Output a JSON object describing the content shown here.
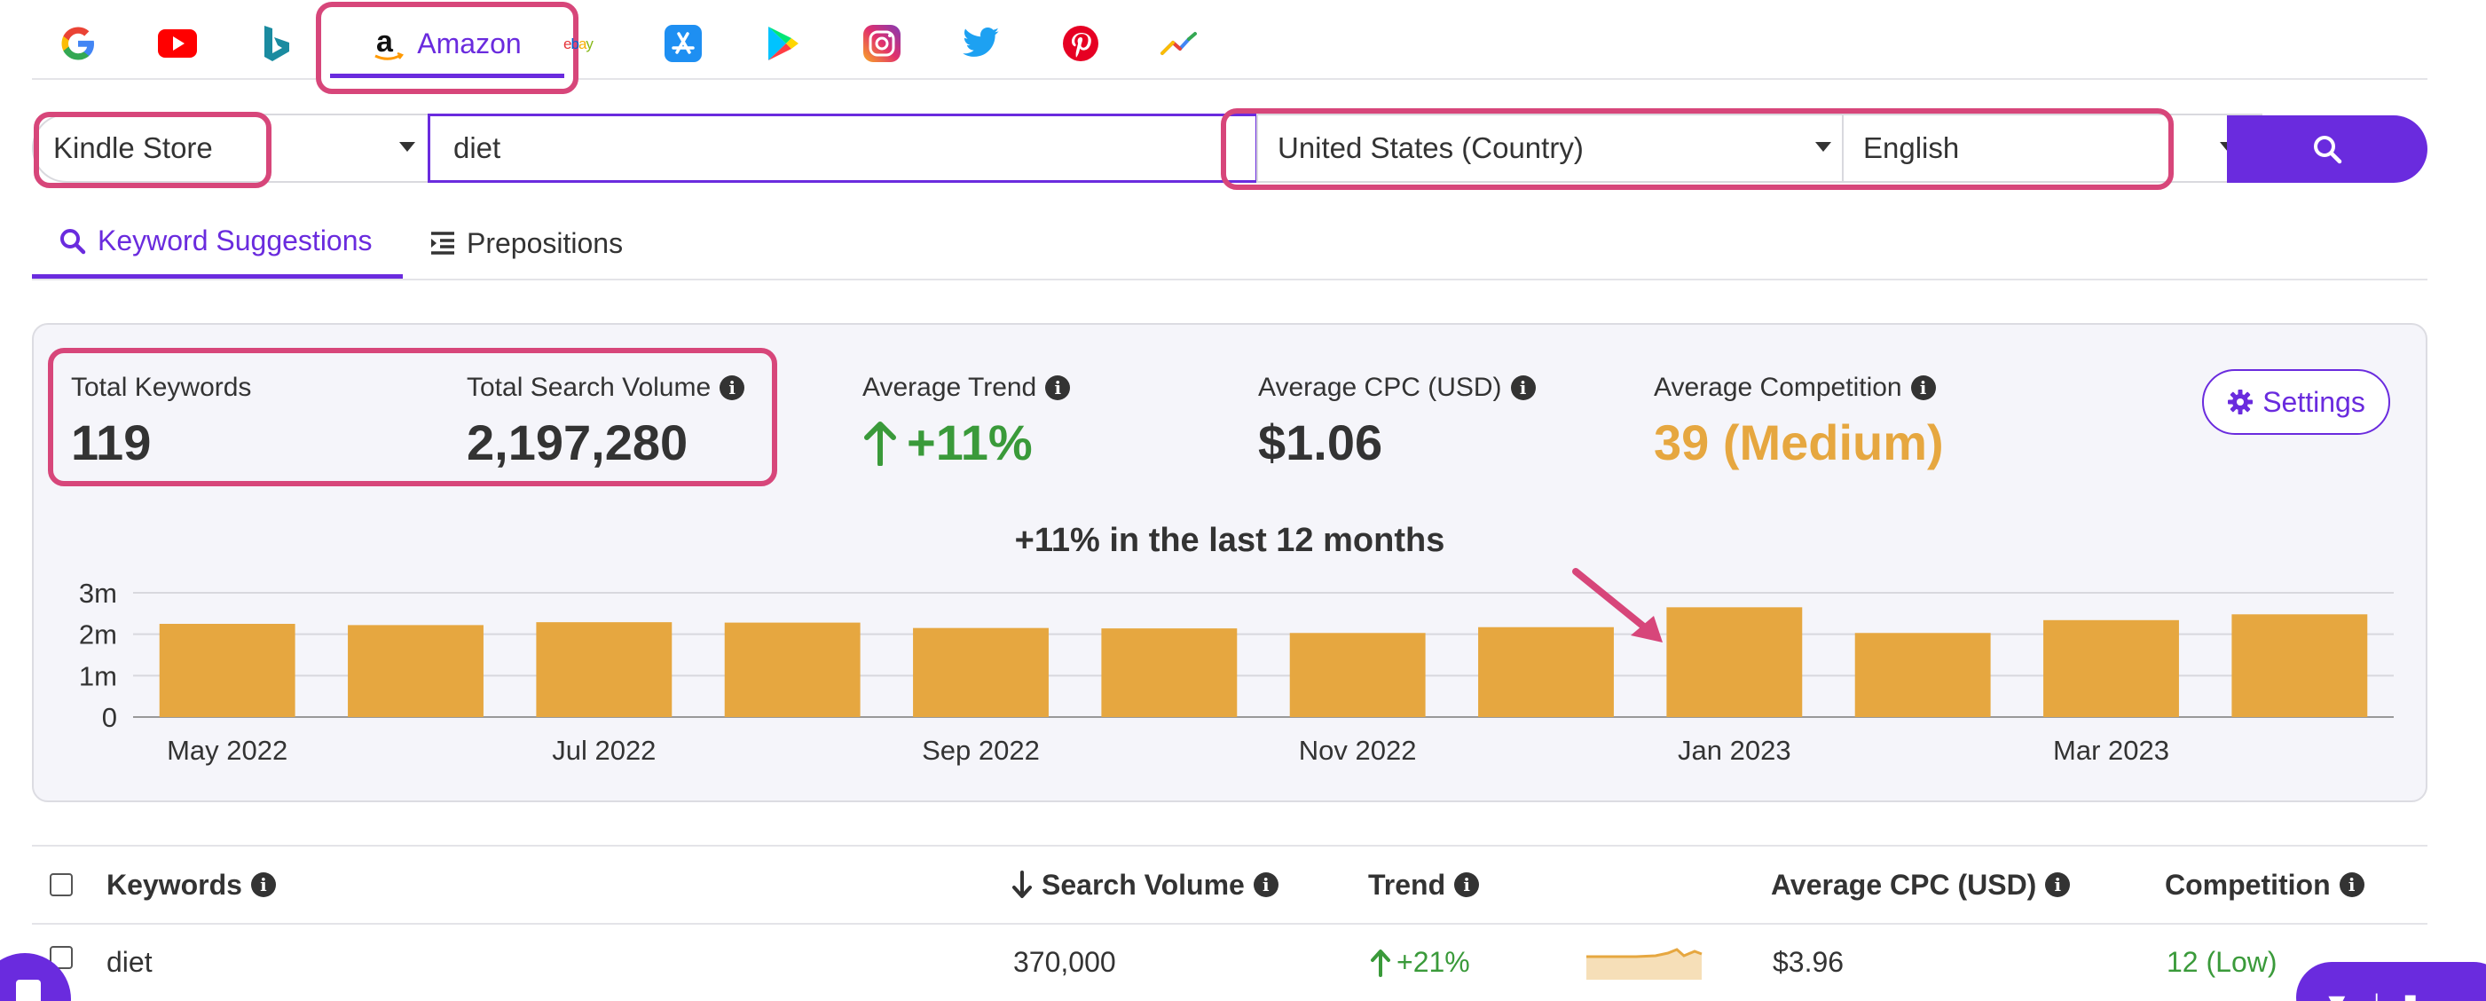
{
  "tabs": [
    {
      "name": "google",
      "icon": "google-icon"
    },
    {
      "name": "youtube",
      "icon": "youtube-icon"
    },
    {
      "name": "bing",
      "icon": "bing-icon"
    },
    {
      "name": "amazon",
      "icon": "amazon-icon",
      "label": "Amazon",
      "active": true
    },
    {
      "name": "ebay",
      "icon": "ebay-icon",
      "logo_text": "ebay"
    },
    {
      "name": "app-store",
      "icon": "app-store-icon"
    },
    {
      "name": "google-play",
      "icon": "google-play-icon"
    },
    {
      "name": "instagram",
      "icon": "instagram-icon"
    },
    {
      "name": "twitter",
      "icon": "twitter-icon"
    },
    {
      "name": "pinterest",
      "icon": "pinterest-icon"
    },
    {
      "name": "trends",
      "icon": "trends-icon"
    }
  ],
  "search": {
    "store": "Kindle Store",
    "keyword": "diet",
    "country": "United States (Country)",
    "language": "English",
    "button_icon": "search-icon"
  },
  "subtabs": {
    "keywords": "Keyword Suggestions",
    "prepositions": "Prepositions"
  },
  "stats": {
    "total_keywords_label": "Total Keywords",
    "total_keywords": "119",
    "total_volume_label": "Total Search Volume",
    "total_volume": "2,197,280",
    "trend_label": "Average Trend",
    "trend": "+11%",
    "cpc_label": "Average CPC (USD)",
    "cpc": "$1.06",
    "competition_label": "Average Competition",
    "competition": "39 (Medium)",
    "settings": "Settings"
  },
  "colors": {
    "accent": "#6a2bde",
    "highlight": "#d7467a",
    "bar": "#e6a740",
    "positive": "#3a9a3a",
    "medium": "#e6a740"
  },
  "chart_data": {
    "type": "bar",
    "title": "+11% in the last 12 months",
    "categories": [
      "May 2022",
      "Jun 2022",
      "Jul 2022",
      "Aug 2022",
      "Sep 2022",
      "Oct 2022",
      "Nov 2022",
      "Dec 2022",
      "Jan 2023",
      "Feb 2023",
      "Mar 2023",
      "Apr 2023"
    ],
    "x_tick_labels": [
      "May 2022",
      "",
      "Jul 2022",
      "",
      "Sep 2022",
      "",
      "Nov 2022",
      "",
      "Jan 2023",
      "",
      "Mar 2023",
      ""
    ],
    "values": [
      2250000,
      2220000,
      2290000,
      2280000,
      2150000,
      2140000,
      2030000,
      2170000,
      2650000,
      2030000,
      2340000,
      2480000
    ],
    "y_ticks": [
      0,
      1000000,
      2000000,
      3000000
    ],
    "y_tick_labels": [
      "0",
      "1m",
      "2m",
      "3m"
    ],
    "ylim": [
      0,
      3000000
    ],
    "grid": true,
    "annotation": "arrow pointing at Jan 2023 bar"
  },
  "table": {
    "headers": {
      "keywords": "Keywords",
      "volume": "Search Volume",
      "trend": "Trend",
      "cpc": "Average CPC (USD)",
      "competition": "Competition"
    },
    "rows": [
      {
        "keyword": "diet",
        "volume": "370,000",
        "trend": "+21%",
        "cpc": "$3.96",
        "competition": "12 (Low)"
      }
    ]
  }
}
